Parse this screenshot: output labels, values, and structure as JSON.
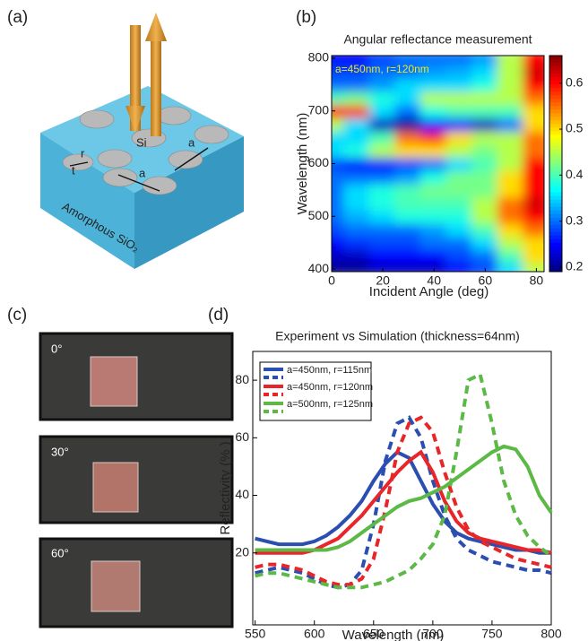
{
  "panel_labels": [
    "(a)",
    "(b)",
    "(c)",
    "(d)"
  ],
  "diagram": {
    "si": "Si",
    "a1": "a",
    "a2": "a",
    "r": "r",
    "t": "t",
    "substrate": "Amorphous SiO₂"
  },
  "photo_labels": [
    "0°",
    "30°",
    "60°"
  ],
  "chart_data": [
    {
      "type": "heatmap",
      "title": "Angular reflectance measurement",
      "annotation": "a=450nm, r=120nm",
      "x_label": "Incident Angle (deg)",
      "y_label": "Wavelength (nm)",
      "x": [
        0,
        10,
        20,
        30,
        40,
        50,
        60,
        70,
        80
      ],
      "y": [
        400,
        425,
        450,
        475,
        500,
        525,
        550,
        575,
        600,
        625,
        650,
        675,
        700,
        725,
        750,
        775,
        800
      ],
      "z": [
        [
          0.2,
          0.2,
          0.22,
          0.22,
          0.22,
          0.25,
          0.28,
          0.35,
          0.45
        ],
        [
          0.22,
          0.22,
          0.25,
          0.25,
          0.25,
          0.28,
          0.3,
          0.4,
          0.5
        ],
        [
          0.25,
          0.27,
          0.28,
          0.28,
          0.3,
          0.3,
          0.35,
          0.45,
          0.5
        ],
        [
          0.28,
          0.3,
          0.3,
          0.3,
          0.32,
          0.35,
          0.4,
          0.5,
          0.55
        ],
        [
          0.3,
          0.33,
          0.35,
          0.38,
          0.38,
          0.38,
          0.45,
          0.55,
          0.6
        ],
        [
          0.3,
          0.35,
          0.38,
          0.4,
          0.4,
          0.4,
          0.45,
          0.55,
          0.62
        ],
        [
          0.3,
          0.35,
          0.38,
          0.4,
          0.42,
          0.42,
          0.42,
          0.5,
          0.6
        ],
        [
          0.3,
          0.3,
          0.3,
          0.32,
          0.38,
          0.42,
          0.42,
          0.5,
          0.6
        ],
        [
          0.28,
          0.25,
          0.25,
          0.28,
          0.3,
          0.35,
          0.4,
          0.45,
          0.6
        ],
        [
          0.35,
          0.38,
          0.45,
          0.5,
          0.5,
          0.45,
          0.42,
          0.45,
          0.55
        ],
        [
          0.35,
          0.35,
          0.4,
          0.55,
          0.58,
          0.5,
          0.45,
          0.45,
          0.55
        ],
        [
          0.45,
          0.35,
          0.22,
          0.2,
          0.25,
          0.25,
          0.22,
          0.3,
          0.5
        ],
        [
          0.6,
          0.58,
          0.35,
          0.3,
          0.38,
          0.4,
          0.4,
          0.4,
          0.5
        ],
        [
          0.4,
          0.42,
          0.38,
          0.35,
          0.45,
          0.45,
          0.45,
          0.45,
          0.55
        ],
        [
          0.3,
          0.3,
          0.32,
          0.35,
          0.35,
          0.35,
          0.38,
          0.45,
          0.6
        ],
        [
          0.28,
          0.28,
          0.3,
          0.3,
          0.32,
          0.33,
          0.35,
          0.45,
          0.62
        ],
        [
          0.25,
          0.25,
          0.28,
          0.3,
          0.3,
          0.3,
          0.32,
          0.45,
          0.6
        ]
      ],
      "xlim": [
        0,
        83
      ],
      "ylim": [
        395,
        805
      ],
      "xticks": [
        0,
        20,
        40,
        60,
        80
      ],
      "yticks": [
        400,
        500,
        600,
        700,
        800
      ],
      "colormap": "jet",
      "clim": [
        0.19,
        0.66
      ],
      "cticks": [
        0.2,
        0.3,
        0.4,
        0.5,
        0.6
      ]
    },
    {
      "type": "line",
      "title": "Experiment vs Simulation (thickness=64nm)",
      "x_label": "Wavelength (nm)",
      "y_label": "Reflectivity (% )",
      "x": [
        550,
        560,
        570,
        580,
        590,
        600,
        610,
        620,
        630,
        640,
        650,
        660,
        670,
        680,
        690,
        700,
        710,
        720,
        730,
        740,
        750,
        760,
        770,
        780,
        790,
        800
      ],
      "series": [
        {
          "name": "a=450nm, r=115nm",
          "color": "#2b4fb0",
          "style": "solid",
          "values": [
            25,
            24,
            23,
            23,
            23,
            24,
            26,
            29,
            33,
            38,
            45,
            51,
            55,
            53,
            45,
            37,
            31,
            27,
            25,
            24,
            23,
            22,
            21,
            21,
            20,
            20
          ]
        },
        {
          "color": "#2b4fb0",
          "style": "dashed",
          "values": [
            13,
            14,
            15,
            14,
            13,
            11,
            9,
            8,
            9,
            14,
            30,
            52,
            65,
            67,
            60,
            45,
            33,
            25,
            21,
            19,
            17,
            16,
            15,
            14,
            14,
            13
          ]
        },
        {
          "name": "a=450nm, r=120nm",
          "color": "#e8262a",
          "style": "solid",
          "values": [
            20,
            20,
            20,
            20,
            20,
            21,
            23,
            25,
            29,
            33,
            38,
            43,
            48,
            52,
            55,
            48,
            38,
            31,
            27,
            25,
            24,
            23,
            22,
            21,
            21,
            20
          ]
        },
        {
          "color": "#e8262a",
          "style": "dashed",
          "values": [
            15,
            16,
            16,
            15,
            14,
            12,
            10,
            9,
            9,
            11,
            18,
            35,
            55,
            65,
            67,
            62,
            48,
            36,
            28,
            24,
            22,
            20,
            18,
            17,
            16,
            15
          ]
        },
        {
          "name": "a=500nm, r=125nm",
          "color": "#5cb946",
          "style": "solid",
          "values": [
            21,
            21,
            21,
            21,
            21,
            21,
            21,
            22,
            24,
            27,
            30,
            33,
            36,
            38,
            39,
            41,
            43,
            46,
            49,
            52,
            55,
            57,
            56,
            50,
            40,
            34
          ]
        },
        {
          "color": "#5cb946",
          "style": "dashed",
          "values": [
            12,
            13,
            13,
            12,
            11,
            10,
            9,
            8,
            8,
            8,
            9,
            10,
            12,
            14,
            18,
            23,
            33,
            55,
            80,
            82,
            65,
            45,
            33,
            26,
            22,
            19
          ]
        }
      ],
      "xlim": [
        548,
        800
      ],
      "ylim": [
        -5,
        90
      ],
      "xticks": [
        550,
        600,
        650,
        700,
        750,
        800
      ],
      "yticks": [
        20,
        40,
        60,
        80
      ],
      "legend": "upper left"
    }
  ]
}
